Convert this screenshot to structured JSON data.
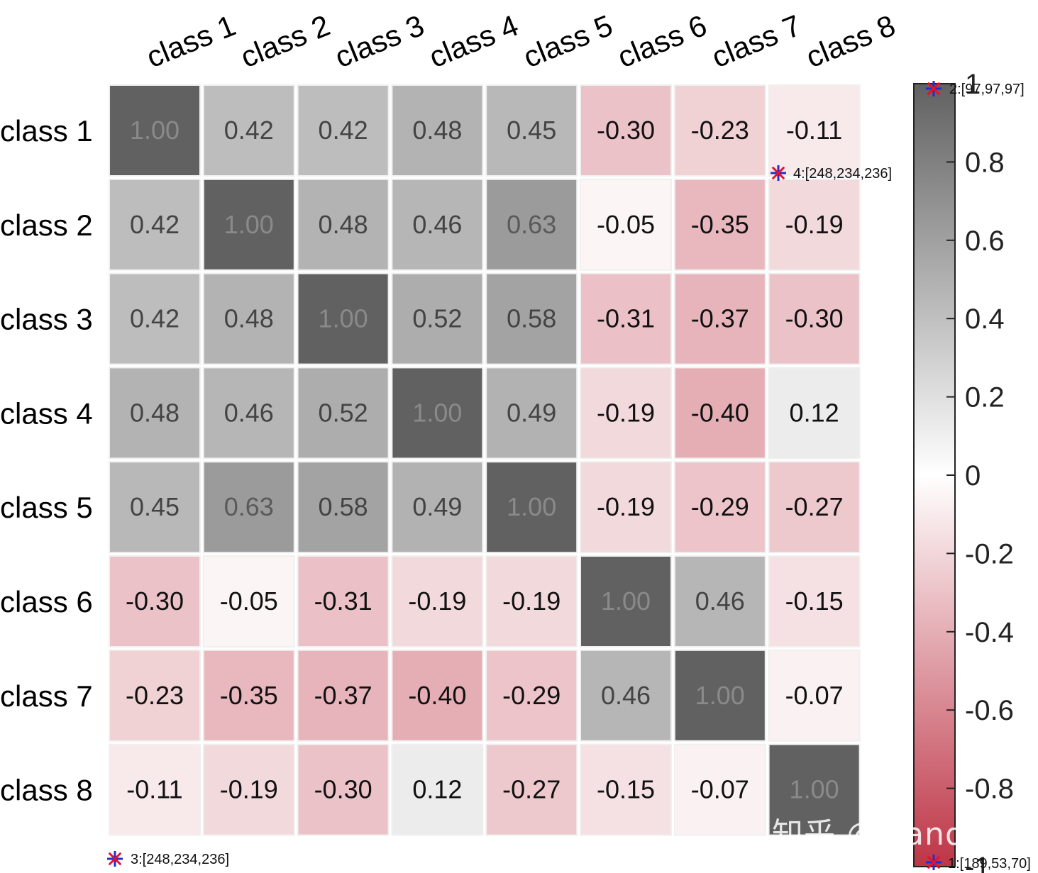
{
  "chart_data": {
    "type": "heatmap",
    "title": "",
    "row_labels": [
      "class 1",
      "class 2",
      "class 3",
      "class 4",
      "class 5",
      "class 6",
      "class 7",
      "class 8"
    ],
    "col_labels": [
      "class 1",
      "class 2",
      "class 3",
      "class 4",
      "class 5",
      "class 6",
      "class 7",
      "class 8"
    ],
    "values": [
      [
        1.0,
        0.42,
        0.42,
        0.48,
        0.45,
        -0.3,
        -0.23,
        -0.11
      ],
      [
        0.42,
        1.0,
        0.48,
        0.46,
        0.63,
        -0.05,
        -0.35,
        -0.19
      ],
      [
        0.42,
        0.48,
        1.0,
        0.52,
        0.58,
        -0.31,
        -0.37,
        -0.3
      ],
      [
        0.48,
        0.46,
        0.52,
        1.0,
        0.49,
        -0.19,
        -0.4,
        0.12
      ],
      [
        0.45,
        0.63,
        0.58,
        0.49,
        1.0,
        -0.19,
        -0.29,
        -0.27
      ],
      [
        -0.3,
        -0.05,
        -0.31,
        -0.19,
        -0.19,
        1.0,
        0.46,
        -0.15
      ],
      [
        -0.23,
        -0.35,
        -0.37,
        -0.4,
        -0.29,
        0.46,
        1.0,
        -0.07
      ],
      [
        -0.11,
        -0.19,
        -0.3,
        0.12,
        -0.27,
        -0.15,
        -0.07,
        1.0
      ]
    ],
    "value_labels": [
      [
        "1.00",
        "0.42",
        "0.42",
        "0.48",
        "0.45",
        "-0.30",
        "-0.23",
        "-0.11"
      ],
      [
        "0.42",
        "1.00",
        "0.48",
        "0.46",
        "0.63",
        "-0.05",
        "-0.35",
        "-0.19"
      ],
      [
        "0.42",
        "0.48",
        "1.00",
        "0.52",
        "0.58",
        "-0.31",
        "-0.37",
        "-0.30"
      ],
      [
        "0.48",
        "0.46",
        "0.52",
        "1.00",
        "0.49",
        "-0.19",
        "-0.40",
        "0.12"
      ],
      [
        "0.45",
        "0.63",
        "0.58",
        "0.49",
        "1.00",
        "-0.19",
        "-0.29",
        "-0.27"
      ],
      [
        "-0.30",
        "-0.05",
        "-0.31",
        "-0.19",
        "-0.19",
        "1.00",
        "0.46",
        "-0.15"
      ],
      [
        "-0.23",
        "-0.35",
        "-0.37",
        "-0.40",
        "-0.29",
        "0.46",
        "1.00",
        "-0.07"
      ],
      [
        "-0.11",
        "-0.19",
        "-0.30",
        "0.12",
        "-0.27",
        "-0.15",
        "-0.07",
        "1.00"
      ]
    ],
    "colorbar": {
      "range": [
        -1,
        1
      ],
      "ticks": [
        -1,
        -0.8,
        -0.6,
        -0.4,
        -0.2,
        0,
        0.2,
        0.4,
        0.6,
        0.8,
        1
      ],
      "tick_labels": [
        "-1",
        "-0.8",
        "-0.6",
        "-0.4",
        "-0.2",
        "0",
        "0.2",
        "0.4",
        "0.6",
        "0.8",
        "1"
      ],
      "color_max": "#616161",
      "color_mid": "#ffffff",
      "color_min": "#bd3546"
    },
    "annotations": [
      {
        "label": "1:[189,53,70]",
        "value": -1
      },
      {
        "label": "2:[97,97,97]",
        "value": 1
      },
      {
        "label": "3:[248,234,236]",
        "anchor": "class 8 / class 1"
      },
      {
        "label": "4:[248,234,236]",
        "anchor": "class 1 / class 8"
      }
    ],
    "marker_colors": {
      "star_a": "#e8102a",
      "star_b": "#1a2fd6"
    },
    "cell_border": "#f0f0f0",
    "legend": "right"
  },
  "watermark": "知乎 @slandarer"
}
